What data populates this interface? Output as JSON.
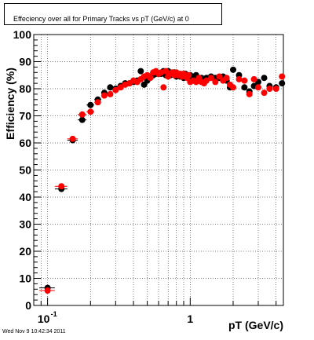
{
  "title": "Effeciency over all for Primary Tracks vs pT (GeV/c) at 0",
  "timestamp": "Wed Nov  9 10:42:34 2011",
  "colors": {
    "series_black": "#000000",
    "series_red": "#ff0000",
    "grid": "#000000"
  },
  "chart_data": {
    "type": "scatter",
    "title": "Effeciency over all for Primary Tracks vs pT (GeV/c) at 0",
    "xlabel": "pT (GeV/c)",
    "ylabel": "Efficiency (%)",
    "xscale": "log",
    "xlim": [
      0.08,
      4.5
    ],
    "ylim": [
      0,
      100
    ],
    "x_tick_labels": [
      {
        "value": 0.1,
        "base": "10",
        "exp": "-1"
      },
      {
        "value": 1,
        "text": "1"
      }
    ],
    "y_ticks": [
      0,
      10,
      20,
      30,
      40,
      50,
      60,
      70,
      80,
      90,
      100
    ],
    "grid": true,
    "series": [
      {
        "color": "#000000",
        "x": [
          0.1,
          0.125,
          0.15,
          0.175,
          0.2,
          0.225,
          0.25,
          0.275,
          0.3,
          0.325,
          0.35,
          0.375,
          0.4,
          0.425,
          0.45,
          0.475,
          0.5,
          0.525,
          0.55,
          0.575,
          0.6,
          0.625,
          0.65,
          0.675,
          0.7,
          0.725,
          0.75,
          0.775,
          0.8,
          0.825,
          0.85,
          0.875,
          0.9,
          0.925,
          0.95,
          0.975,
          1.0,
          1.05,
          1.1,
          1.15,
          1.2,
          1.25,
          1.3,
          1.4,
          1.5,
          1.6,
          1.7,
          1.8,
          1.9,
          2.0,
          2.2,
          2.4,
          2.6,
          2.8,
          3.0,
          3.3,
          3.6,
          4.0,
          4.4
        ],
        "y": [
          6.5,
          43,
          61,
          68.5,
          74,
          76,
          78.5,
          80.5,
          80,
          81,
          82,
          82,
          82.5,
          83,
          86.5,
          81.5,
          83,
          84.5,
          85,
          85.5,
          85.5,
          85.5,
          86.5,
          85,
          86.5,
          85,
          85.5,
          86,
          84.5,
          85,
          84.5,
          85,
          84,
          85.5,
          85,
          84.5,
          85,
          84.5,
          85,
          83,
          84,
          83.5,
          84,
          84.5,
          84,
          84,
          84.5,
          83,
          80.5,
          87,
          85,
          80.5,
          79,
          81,
          82.5,
          84,
          81,
          80.5,
          82
        ]
      },
      {
        "color": "#ff0000",
        "x": [
          0.1,
          0.125,
          0.15,
          0.175,
          0.2,
          0.225,
          0.25,
          0.275,
          0.3,
          0.325,
          0.35,
          0.375,
          0.4,
          0.425,
          0.45,
          0.475,
          0.5,
          0.525,
          0.55,
          0.575,
          0.6,
          0.625,
          0.65,
          0.675,
          0.7,
          0.725,
          0.75,
          0.775,
          0.8,
          0.825,
          0.85,
          0.875,
          0.9,
          0.925,
          0.95,
          0.975,
          1.0,
          1.05,
          1.1,
          1.15,
          1.2,
          1.25,
          1.3,
          1.4,
          1.5,
          1.6,
          1.7,
          1.8,
          1.9,
          2.0,
          2.2,
          2.4,
          2.6,
          2.8,
          3.0,
          3.3,
          3.6,
          4.0,
          4.4
        ],
        "y": [
          5.5,
          44,
          61.5,
          70.5,
          71.5,
          75,
          77.5,
          78,
          79.5,
          80.5,
          81.5,
          82,
          83,
          82.5,
          83.5,
          84.5,
          85,
          84,
          86,
          86.5,
          85.5,
          86,
          80.5,
          86.5,
          84.5,
          85.5,
          86,
          85,
          86,
          85,
          85.5,
          84.5,
          85.5,
          84.5,
          84,
          85,
          82.5,
          83,
          82.5,
          84,
          82.5,
          82,
          83,
          84,
          82.5,
          84.5,
          83,
          84,
          81.5,
          80.5,
          83.5,
          83,
          78,
          83.5,
          80.5,
          78.5,
          80,
          80,
          84.5
        ]
      }
    ]
  }
}
